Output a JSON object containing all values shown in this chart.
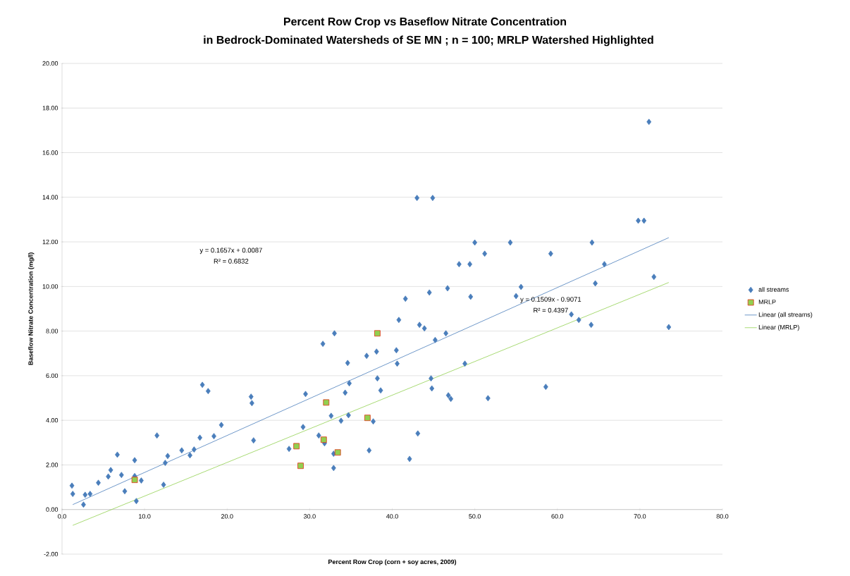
{
  "chart_data": {
    "type": "scatter",
    "title": "Percent Row Crop vs Baseflow Nitrate Concentration",
    "subtitle": "in Bedrock-Dominated Watersheds of SE MN ; n = 100; MRLP Watershed Highlighted",
    "xlabel": "Percent Row Crop (corn + soy acres, 2009)",
    "ylabel": "Baseflow Nitrate Concentration (mg/l)",
    "xlim": [
      0,
      80
    ],
    "ylim": [
      -2,
      20
    ],
    "xticks": [
      {
        "value": 0,
        "label": "0.0"
      },
      {
        "value": 10,
        "label": "10.0"
      },
      {
        "value": 20,
        "label": "20.0"
      },
      {
        "value": 30,
        "label": "30.0"
      },
      {
        "value": 40,
        "label": "40.0"
      },
      {
        "value": 50,
        "label": "50.0"
      },
      {
        "value": 60,
        "label": "60.0"
      },
      {
        "value": 70,
        "label": "70.0"
      },
      {
        "value": 80,
        "label": "80.0"
      }
    ],
    "yticks": [
      {
        "value": -2,
        "label": "-2.00"
      },
      {
        "value": 0,
        "label": "0.00"
      },
      {
        "value": 2,
        "label": "2.00"
      },
      {
        "value": 4,
        "label": "4.00"
      },
      {
        "value": 6,
        "label": "6.00"
      },
      {
        "value": 8,
        "label": "8.00"
      },
      {
        "value": 10,
        "label": "10.00"
      },
      {
        "value": 12,
        "label": "12.00"
      },
      {
        "value": 14,
        "label": "14.00"
      },
      {
        "value": 16,
        "label": "16.00"
      },
      {
        "value": 18,
        "label": "18.00"
      },
      {
        "value": 20,
        "label": "20.00"
      }
    ],
    "grid": "y",
    "legend": "right",
    "series": [
      {
        "name": "all streams",
        "type": "scatter",
        "marker": "diamond",
        "color": "#4a7ebb",
        "x": [
          1.2,
          1.3,
          2.6,
          2.8,
          3.4,
          4.4,
          5.6,
          5.9,
          6.7,
          7.2,
          7.6,
          8.8,
          8.8,
          9.0,
          9.6,
          11.5,
          12.3,
          12.5,
          12.8,
          14.5,
          15.5,
          16.0,
          16.7,
          17.0,
          17.7,
          18.4,
          19.3,
          22.9,
          23.0,
          23.2,
          27.5,
          29.5,
          29.2,
          31.1,
          31.6,
          31.8,
          33.0,
          32.6,
          32.9,
          32.9,
          33.8,
          34.3,
          34.6,
          34.7,
          34.8,
          36.9,
          37.2,
          37.7,
          38.1,
          38.2,
          38.6,
          40.5,
          40.6,
          40.8,
          41.6,
          42.1,
          43.0,
          43.1,
          43.3,
          43.9,
          44.5,
          44.7,
          44.8,
          44.9,
          45.2,
          46.5,
          46.7,
          46.8,
          47.1,
          48.1,
          48.8,
          49.4,
          49.5,
          50.0,
          51.2,
          51.6,
          54.3,
          55.0,
          55.6,
          58.6,
          59.2,
          61.7,
          62.6,
          64.1,
          64.2,
          64.6,
          65.7,
          69.8,
          70.5,
          71.1,
          71.7,
          73.5
        ],
        "values": [
          1.07,
          0.7,
          0.22,
          0.66,
          0.7,
          1.2,
          1.48,
          1.77,
          2.46,
          1.55,
          0.82,
          2.21,
          1.5,
          0.38,
          1.3,
          3.32,
          1.11,
          2.09,
          2.4,
          2.65,
          2.43,
          2.69,
          3.22,
          5.59,
          5.31,
          3.29,
          3.79,
          5.06,
          4.77,
          3.1,
          2.72,
          5.18,
          3.7,
          3.32,
          7.43,
          2.97,
          7.9,
          4.2,
          1.86,
          2.5,
          3.98,
          5.24,
          6.57,
          4.23,
          5.66,
          6.89,
          2.65,
          3.95,
          7.08,
          5.88,
          5.34,
          7.14,
          6.54,
          8.5,
          9.45,
          2.27,
          13.97,
          3.41,
          8.28,
          8.12,
          9.73,
          5.88,
          5.43,
          13.97,
          7.6,
          7.9,
          9.92,
          5.12,
          4.96,
          11.0,
          6.54,
          11.0,
          9.54,
          11.97,
          11.47,
          4.99,
          11.97,
          9.57,
          9.98,
          5.5,
          11.47,
          8.75,
          8.5,
          8.28,
          11.97,
          10.14,
          11.0,
          12.95,
          12.95,
          17.38,
          10.43,
          8.18
        ]
      },
      {
        "name": "MRLP",
        "type": "scatter",
        "marker": "square",
        "color": "#92d050",
        "x": [
          8.8,
          28.4,
          28.9,
          32.0,
          31.7,
          33.4,
          37.0,
          38.2
        ],
        "values": [
          1.33,
          2.84,
          1.96,
          4.8,
          3.13,
          2.56,
          4.11,
          7.9
        ]
      },
      {
        "name": "Linear (all streams)",
        "type": "line",
        "marker": "none",
        "color": "#4a7ebb",
        "x": [
          1.3,
          73.5
        ],
        "values": [
          0.22,
          12.19
        ]
      },
      {
        "name": "Linear (MRLP)",
        "type": "line",
        "marker": "none",
        "color": "#92d050",
        "x": [
          1.3,
          73.5
        ],
        "values": [
          -0.71,
          10.18
        ]
      }
    ],
    "annotations": [
      "y = 0.1657x + 0.0087",
      "R² = 0.6832",
      "y = 0.1509x - 0.9071",
      "R² = 0.4397"
    ]
  }
}
